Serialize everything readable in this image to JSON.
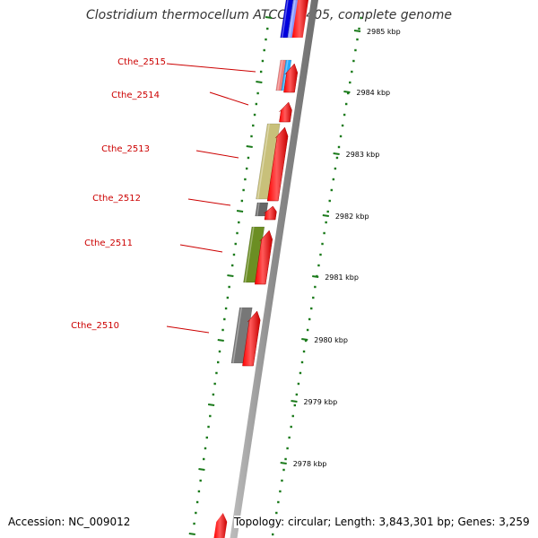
{
  "title": "Clostridium thermocellum ATCC 27405, complete genome",
  "accession": "Accession: NC_009012",
  "topology": "Topology: circular; Length: 3,843,301 bp; Genes: 3,259",
  "colors": {
    "backbone": "#8c8c8c",
    "forward_cds": "#ff0000",
    "tick": "#1a7a1a",
    "label": "#cc0000",
    "axis_label": "#000000"
  },
  "scale": {
    "unit": "kbp",
    "labels": [
      "2985 kbp",
      "2984 kbp",
      "2983 kbp",
      "2982 kbp",
      "2981 kbp",
      "2980 kbp",
      "2979 kbp",
      "2978 kbp"
    ]
  },
  "genes": [
    {
      "id": "g2515",
      "label": "Cthe_2515",
      "cog_colors": [
        "#f08080",
        "#22aaff"
      ]
    },
    {
      "id": "g2514",
      "label": "Cthe_2514",
      "cog_colors": []
    },
    {
      "id": "g2513",
      "label": "Cthe_2513",
      "cog_colors": [
        "#c8c07a"
      ]
    },
    {
      "id": "g2512",
      "label": "Cthe_2512",
      "cog_colors": [
        "#666666"
      ]
    },
    {
      "id": "g2511",
      "label": "Cthe_2511",
      "cog_colors": [
        "#6b8e23"
      ]
    },
    {
      "id": "g2510",
      "label": "Cthe_2510",
      "cog_colors": [
        "#777777"
      ]
    }
  ],
  "edge_features": {
    "top_cog_colors": [
      "#0000dd",
      "#8899ff"
    ]
  }
}
